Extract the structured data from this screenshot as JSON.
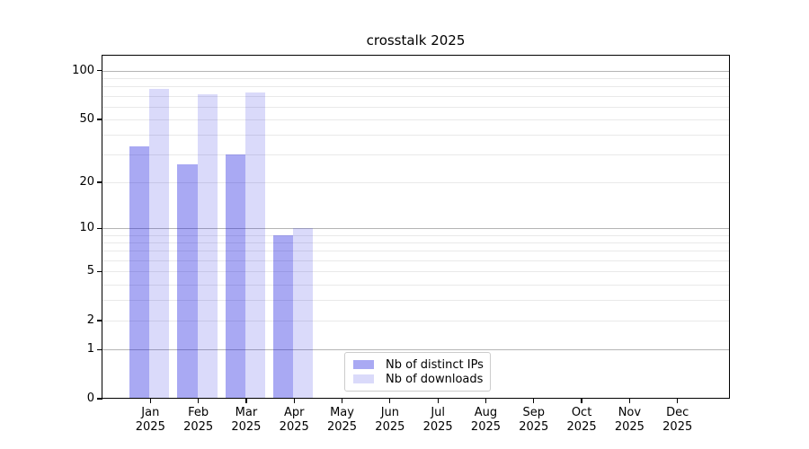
{
  "chart_data": {
    "type": "bar",
    "title": "crosstalk 2025",
    "year": "2025",
    "categories": [
      "Jan",
      "Feb",
      "Mar",
      "Apr",
      "May",
      "Jun",
      "Jul",
      "Aug",
      "Sep",
      "Oct",
      "Nov",
      "Dec"
    ],
    "series": [
      {
        "name": "Nb of distinct IPs",
        "color": "rgba(10,10,222,0.35)",
        "values": [
          34,
          26,
          30,
          9,
          null,
          null,
          null,
          null,
          null,
          null,
          null,
          null
        ]
      },
      {
        "name": "Nb of downloads",
        "color": "rgba(10,10,222,0.15)",
        "values": [
          77,
          72,
          73,
          10,
          null,
          null,
          null,
          null,
          null,
          null,
          null,
          null
        ]
      }
    ],
    "yscale": "log1p",
    "ylim": [
      0,
      125.5
    ],
    "y_ticks": [
      0,
      1,
      2,
      5,
      10,
      20,
      50,
      100
    ],
    "major_gridlines": [
      1,
      10,
      100
    ],
    "minor_gridlines": [
      2,
      3,
      4,
      5,
      6,
      7,
      8,
      9,
      20,
      30,
      40,
      50,
      60,
      70,
      80,
      90
    ],
    "legend_position": "lower center",
    "grid": "on"
  }
}
